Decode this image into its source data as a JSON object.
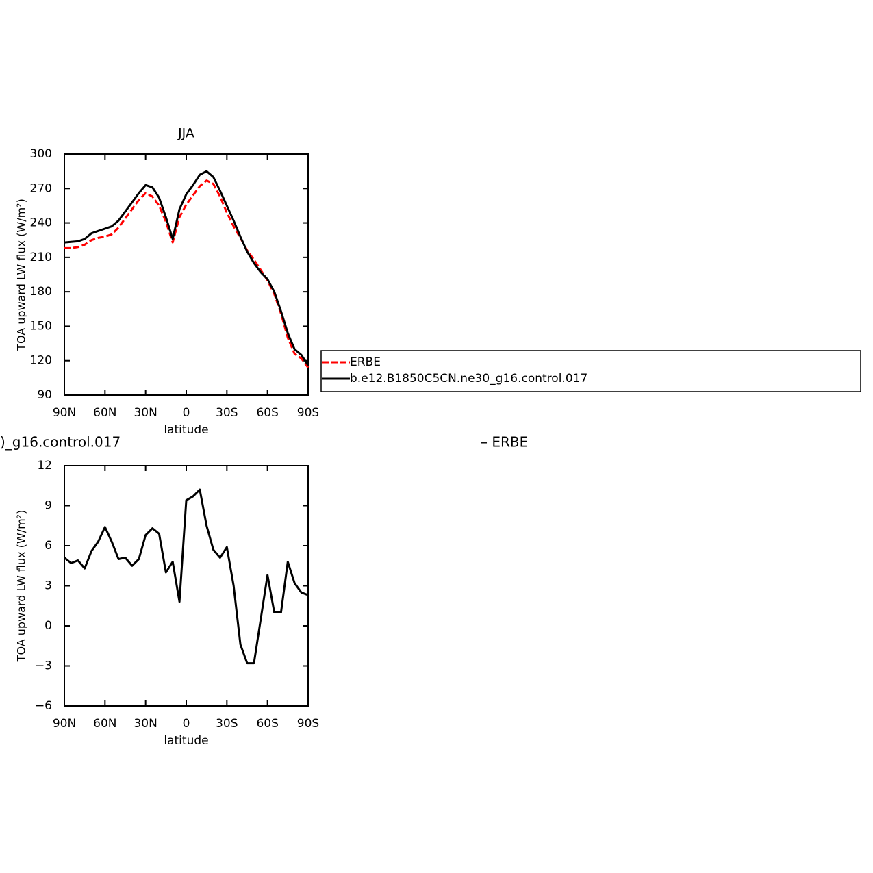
{
  "chart_data": [
    {
      "type": "line",
      "title": "JJA",
      "xlabel": "latitude",
      "ylabel": "TOA upward LW flux (W/m²)",
      "x": [
        90,
        85,
        80,
        75,
        70,
        65,
        60,
        55,
        50,
        45,
        40,
        35,
        30,
        25,
        20,
        15,
        10,
        5,
        0,
        -5,
        -10,
        -15,
        -20,
        -25,
        -30,
        -35,
        -40,
        -45,
        -50,
        -55,
        -60,
        -65,
        -70,
        -75,
        -80,
        -85,
        -90
      ],
      "series": [
        {
          "name": "ERBE",
          "color": "#ff0000",
          "line_style": "dashed",
          "values": [
            218,
            218,
            219,
            221,
            225,
            227,
            228,
            230,
            236,
            244,
            252,
            260,
            266,
            263,
            255,
            241,
            223,
            245,
            256,
            264,
            272,
            277,
            274,
            263,
            249,
            237,
            227,
            216,
            208,
            199,
            190,
            178,
            161,
            140,
            126,
            122,
            114
          ]
        },
        {
          "name": "b.e12.B1850C5CN.ne30_g16.control.017",
          "color": "#000000",
          "line_style": "solid",
          "values": [
            223,
            223.5,
            224,
            226,
            231,
            233,
            235,
            237,
            242,
            250,
            258,
            266,
            273,
            271,
            262,
            245,
            226,
            252,
            265,
            273,
            282,
            285,
            280,
            268,
            255,
            242,
            228,
            215,
            205,
            197,
            191,
            180,
            163,
            144,
            130,
            125,
            116
          ]
        }
      ],
      "xlim": [
        90,
        -90
      ],
      "xticks": [
        {
          "value": 90,
          "label": "90N"
        },
        {
          "value": 60,
          "label": "60N"
        },
        {
          "value": 30,
          "label": "30N"
        },
        0,
        {
          "value": -30,
          "label": "30S"
        },
        {
          "value": -60,
          "label": "60S"
        },
        {
          "value": -90,
          "label": "90S"
        }
      ],
      "ylim": [
        90,
        300
      ],
      "yticks": [
        90,
        120,
        150,
        180,
        210,
        240,
        270,
        300
      ],
      "legend": "right"
    },
    {
      "type": "line",
      "title_parts": [
        ")_g16.control.017",
        "– ERBE"
      ],
      "xlabel": "latitude",
      "ylabel": "TOA upward LW flux (W/m²)",
      "x": [
        90,
        85,
        80,
        75,
        70,
        65,
        60,
        55,
        50,
        45,
        40,
        35,
        30,
        25,
        20,
        15,
        10,
        5,
        0,
        -5,
        -10,
        -15,
        -20,
        -25,
        -30,
        -35,
        -40,
        -45,
        -50,
        -55,
        -60,
        -65,
        -70,
        -75,
        -80,
        -85,
        -90
      ],
      "series": [
        {
          "color": "#000000",
          "line_style": "solid",
          "values": [
            5.1,
            4.7,
            4.9,
            4.3,
            5.6,
            6.3,
            7.4,
            6.3,
            5.0,
            5.1,
            4.5,
            5.0,
            6.8,
            7.3,
            6.9,
            4.0,
            4.8,
            1.8,
            9.4,
            9.7,
            10.2,
            7.5,
            5.7,
            5.1,
            5.9,
            3.0,
            -1.4,
            -2.8,
            -2.8,
            0.5,
            3.8,
            1.0,
            1.0,
            4.8,
            3.2,
            2.5,
            2.3
          ]
        }
      ],
      "xlim": [
        90,
        -90
      ],
      "xticks": [
        {
          "value": 90,
          "label": "90N"
        },
        {
          "value": 60,
          "label": "60N"
        },
        {
          "value": 30,
          "label": "30N"
        },
        0,
        {
          "value": -30,
          "label": "30S"
        },
        {
          "value": -60,
          "label": "60S"
        },
        {
          "value": -90,
          "label": "90S"
        }
      ],
      "ylim": [
        -6,
        12
      ],
      "yticks": [
        {
          "value": -6,
          "label": "−6"
        },
        {
          "value": -3,
          "label": "−3"
        },
        0,
        3,
        6,
        9,
        12
      ]
    }
  ]
}
